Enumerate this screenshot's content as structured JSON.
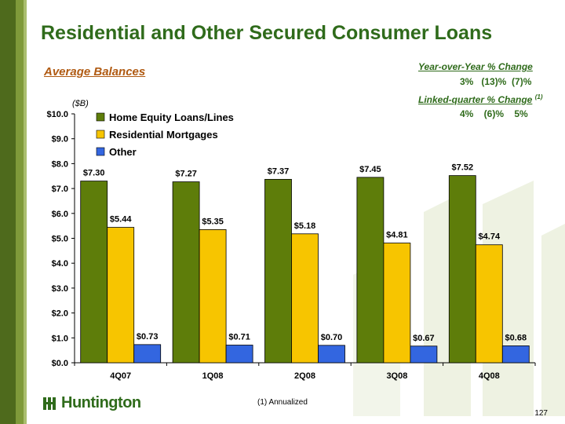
{
  "slide": {
    "title": "Residential and Other Secured Consumer Loans",
    "subtitle": "Average Balances",
    "unit": "($B)",
    "yoy_label": "Year-over-Year % Change",
    "yoy_values": "3%   (13)%  (7)%",
    "lq_label": "Linked-quarter % Change",
    "lq_note": "(1)",
    "lq_values": "4%    (6)%    5%",
    "footnote": "(1)  Annualized",
    "logo_text": "Huntington",
    "page_number": "127"
  },
  "colors": {
    "home_equity": "#5e7d0a",
    "residential": "#f7c500",
    "other": "#3366e0",
    "title_green": "#2f6b1b",
    "subtitle_orange": "#b05a12"
  },
  "chart_data": {
    "type": "bar",
    "categories": [
      "4Q07",
      "1Q08",
      "2Q08",
      "3Q08",
      "4Q08"
    ],
    "series": [
      {
        "name": "Home Equity Loans/Lines",
        "values": [
          7.3,
          7.27,
          7.37,
          7.45,
          7.52
        ],
        "labels": [
          "$7.30",
          "$7.27",
          "$7.37",
          "$7.45",
          "$7.52"
        ]
      },
      {
        "name": "Residential Mortgages",
        "values": [
          5.44,
          5.35,
          5.18,
          4.81,
          4.74
        ],
        "labels": [
          "$5.44",
          "$5.35",
          "$5.18",
          "$4.81",
          "$4.74"
        ]
      },
      {
        "name": "Other",
        "values": [
          0.73,
          0.71,
          0.7,
          0.67,
          0.68
        ],
        "labels": [
          "$0.73",
          "$0.71",
          "$0.70",
          "$0.67",
          "$0.68"
        ]
      }
    ],
    "ylim": [
      0,
      10
    ],
    "yticks": [
      "$0.0",
      "$1.0",
      "$2.0",
      "$3.0",
      "$4.0",
      "$5.0",
      "$6.0",
      "$7.0",
      "$8.0",
      "$9.0",
      "$10.0"
    ],
    "legend_position": "top-left",
    "grid": false
  }
}
